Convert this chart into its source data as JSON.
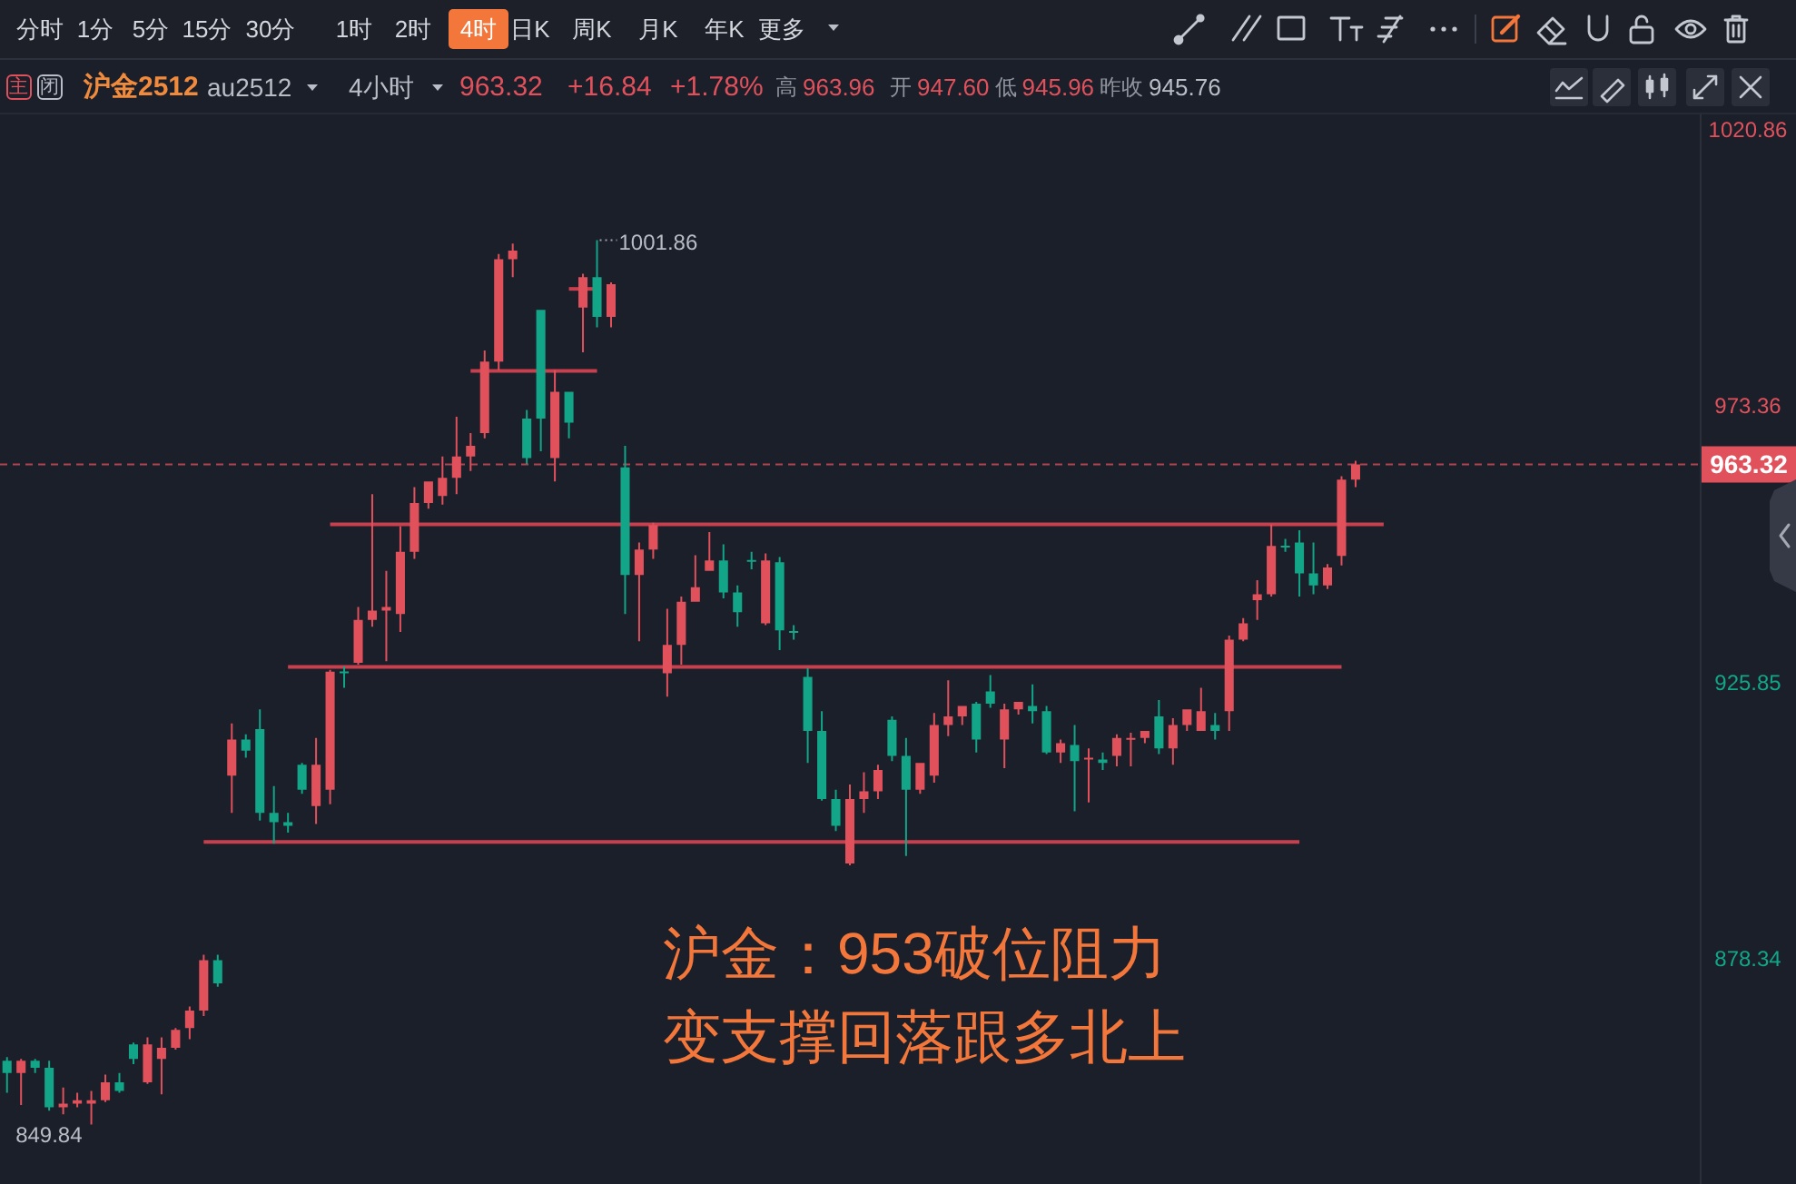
{
  "chart_data": {
    "type": "candlestick",
    "title": "沪金2512",
    "subtitle": "au2512",
    "categories": [
      null,
      null,
      null,
      null,
      null,
      null,
      null,
      null,
      null,
      null,
      null,
      null,
      null,
      null,
      null,
      null,
      null,
      null,
      null,
      null,
      null,
      null,
      null,
      null,
      null,
      null,
      null,
      null,
      null,
      null,
      null,
      null,
      null,
      null,
      null,
      null,
      null,
      null,
      null,
      null,
      null,
      null,
      null,
      null,
      null,
      null,
      null,
      null,
      null,
      null,
      null,
      null,
      null,
      null,
      null,
      null,
      null,
      null,
      null,
      null,
      null,
      null,
      null,
      null,
      null,
      null,
      null,
      null,
      null,
      null,
      null,
      null,
      null,
      null,
      null,
      null,
      null,
      null,
      null,
      null,
      null,
      null,
      null,
      null,
      null,
      null,
      null,
      null,
      null,
      null,
      null,
      null,
      null,
      null,
      null,
      null,
      null,
      null,
      null,
      null,
      null,
      null,
      null,
      null,
      null,
      null,
      null,
      null,
      null,
      null,
      null,
      null,
      null,
      null,
      null,
      null,
      null,
      null,
      null,
      null,
      null
    ],
    "ohlc": [
      [
        860.8,
        861.4,
        855.3,
        858.7
      ],
      [
        858.7,
        861.1,
        853.2,
        860.8
      ],
      [
        860.8,
        861.1,
        858.7,
        859.6
      ],
      [
        859.6,
        860.8,
        852.2,
        852.8
      ],
      [
        852.8,
        856.2,
        851.6,
        853.4
      ],
      [
        853.4,
        855.3,
        852.8,
        854.0
      ],
      [
        853.4,
        855.6,
        849.84,
        854.0
      ],
      [
        854.0,
        858.4,
        853.7,
        857.1
      ],
      [
        857.1,
        858.7,
        855.3,
        855.6
      ],
      [
        863.6,
        863.9,
        860.2,
        861.1
      ],
      [
        857.1,
        864.8,
        856.8,
        863.6
      ],
      [
        861.1,
        864.8,
        855.0,
        863.0
      ],
      [
        863.0,
        866.4,
        862.7,
        866.1
      ],
      [
        866.4,
        870.1,
        864.5,
        869.4
      ],
      [
        869.4,
        879.0,
        868.5,
        878.1
      ],
      [
        878.1,
        879.0,
        873.5,
        874.1
      ],
      [
        909.8,
        918.8,
        903.4,
        916.0
      ],
      [
        916.0,
        916.9,
        912.9,
        914.1
      ],
      [
        917.8,
        921.2,
        902.1,
        903.4
      ],
      [
        903.4,
        908.0,
        898.1,
        901.8
      ],
      [
        901.8,
        903.4,
        900.0,
        901.2
      ],
      [
        911.7,
        912.0,
        906.7,
        907.4
      ],
      [
        904.6,
        916.3,
        901.5,
        911.7
      ],
      [
        907.4,
        928.0,
        904.9,
        927.7
      ],
      [
        927.7,
        928.6,
        924.9,
        927.4
      ],
      [
        929.2,
        938.8,
        928.9,
        936.6
      ],
      [
        936.6,
        958.2,
        935.4,
        938.2
      ],
      [
        938.2,
        945.0,
        929.5,
        938.8
      ],
      [
        937.6,
        952.7,
        934.5,
        948.3
      ],
      [
        948.3,
        959.4,
        947.1,
        956.7
      ],
      [
        956.7,
        960.4,
        955.7,
        960.4
      ],
      [
        957.9,
        964.7,
        956.4,
        961.0
      ],
      [
        961.0,
        971.5,
        958.2,
        964.7
      ],
      [
        964.7,
        968.7,
        962.2,
        966.5
      ],
      [
        968.7,
        982.9,
        967.8,
        981.0
      ],
      [
        981.0,
        999.5,
        979.5,
        998.6
      ],
      [
        998.6,
        1001.3,
        995.5,
        1000.1
      ],
      [
        971.2,
        972.7,
        963.4,
        964.4
      ],
      [
        989.9,
        989.9,
        965.6,
        971.2
      ],
      [
        964.4,
        979.5,
        960.4,
        975.8
      ],
      [
        975.8,
        975.8,
        967.8,
        970.5
      ],
      [
        990.3,
        996.1,
        982.6,
        995.5
      ],
      [
        995.5,
        1001.86,
        986.9,
        988.7
      ],
      [
        988.7,
        994.6,
        986.9,
        994.3
      ],
      [
        962.8,
        966.5,
        937.6,
        944.3
      ],
      [
        944.3,
        949.9,
        932.9,
        948.7
      ],
      [
        948.7,
        953.3,
        947.1,
        952.9
      ],
      [
        927.4,
        938.5,
        923.4,
        932.3
      ],
      [
        932.3,
        940.6,
        928.9,
        939.7
      ],
      [
        939.7,
        947.7,
        939.7,
        942.2
      ],
      [
        945.0,
        951.7,
        945.0,
        946.8
      ],
      [
        946.8,
        949.6,
        940.3,
        941.3
      ],
      [
        941.3,
        942.5,
        935.4,
        937.9
      ],
      [
        946.9,
        948.3,
        945.3,
        946.6
      ],
      [
        936.0,
        948.0,
        935.7,
        946.8
      ],
      [
        946.5,
        947.4,
        931.4,
        934.8
      ],
      [
        934.6,
        935.7,
        933.2,
        934.4
      ],
      [
        926.8,
        928.3,
        912.0,
        917.5
      ],
      [
        917.5,
        920.9,
        905.5,
        905.8
      ],
      [
        905.8,
        907.4,
        900.3,
        901.2
      ],
      [
        894.7,
        908.3,
        894.4,
        905.8
      ],
      [
        905.8,
        910.4,
        903.4,
        907.1
      ],
      [
        907.1,
        911.7,
        905.8,
        910.8
      ],
      [
        919.4,
        920.0,
        912.3,
        913.2
      ],
      [
        913.2,
        916.3,
        896.0,
        907.4
      ],
      [
        907.4,
        912.0,
        906.7,
        912.0
      ],
      [
        909.8,
        920.6,
        908.6,
        918.5
      ],
      [
        918.5,
        926.2,
        916.6,
        920.0
      ],
      [
        920.0,
        921.8,
        918.5,
        921.8
      ],
      [
        922.2,
        922.5,
        913.8,
        916.0
      ],
      [
        924.3,
        927.1,
        921.5,
        922.2
      ],
      [
        916.0,
        922.2,
        911.1,
        921.2
      ],
      [
        921.2,
        922.5,
        920.3,
        922.5
      ],
      [
        921.8,
        925.5,
        918.8,
        920.9
      ],
      [
        920.9,
        921.8,
        913.5,
        913.8
      ],
      [
        913.8,
        916.0,
        912.0,
        915.4
      ],
      [
        915.1,
        918.5,
        903.7,
        912.3
      ],
      [
        912.6,
        914.5,
        905.2,
        912.9
      ],
      [
        912.6,
        913.8,
        910.8,
        912.0
      ],
      [
        913.2,
        916.9,
        911.4,
        916.3
      ],
      [
        916.0,
        917.2,
        911.4,
        916.3
      ],
      [
        916.3,
        917.5,
        915.4,
        917.5
      ],
      [
        920.0,
        922.8,
        913.5,
        914.5
      ],
      [
        914.5,
        919.7,
        911.7,
        918.5
      ],
      [
        918.5,
        921.2,
        917.5,
        921.2
      ],
      [
        917.5,
        924.9,
        917.5,
        920.9
      ],
      [
        918.5,
        920.6,
        916.0,
        917.5
      ],
      [
        920.9,
        933.9,
        917.5,
        933.2
      ],
      [
        933.2,
        936.9,
        932.9,
        936.0
      ],
      [
        940.0,
        943.4,
        936.6,
        941.0
      ],
      [
        941.0,
        953.0,
        940.6,
        949.3
      ],
      [
        949.3,
        950.5,
        948.3,
        949.1
      ],
      [
        949.9,
        952.0,
        940.6,
        944.6
      ],
      [
        944.6,
        949.9,
        941.0,
        942.5
      ],
      [
        942.5,
        946.2,
        941.9,
        945.6
      ],
      [
        947.6,
        961.3,
        945.96,
        960.7
      ],
      [
        960.7,
        963.96,
        959.4,
        963.32
      ],
      null,
      null,
      null,
      null,
      null,
      null,
      null,
      null,
      null,
      null,
      null,
      null,
      null,
      null,
      null,
      null,
      null,
      null,
      null,
      null,
      null,
      null,
      null,
      null
    ],
    "colors": [
      "#12a588",
      "#e0515c",
      "#12a588",
      "#12a588",
      "#e0515c",
      "#e0515c",
      "#e0515c",
      "#e0515c",
      "#12a588",
      "#12a588",
      "#e0515c",
      "#e0515c",
      "#e0515c",
      "#e0515c",
      "#e0515c",
      "#12a588",
      "#e0515c",
      "#12a588",
      "#12a588",
      "#12a588",
      "#12a588",
      "#12a588",
      "#e0515c",
      "#e0515c",
      "#12a588",
      "#e0515c",
      "#e0515c",
      "#e0515c",
      "#e0515c",
      "#e0515c",
      "#e0515c",
      "#e0515c",
      "#e0515c",
      "#e0515c",
      "#e0515c",
      "#e0515c",
      "#e0515c",
      "#12a588",
      "#12a588",
      "#e0515c",
      "#12a588",
      "#e0515c",
      "#12a588",
      "#e0515c",
      "#12a588",
      "#e0515c",
      "#e0515c",
      "#e0515c",
      "#e0515c",
      "#e0515c",
      "#e0515c",
      "#12a588",
      "#12a588",
      "#12a588",
      "#e0515c",
      "#12a588",
      "#12a588",
      "#12a588",
      "#12a588",
      "#12a588",
      "#e0515c",
      "#e0515c",
      "#e0515c",
      "#12a588",
      "#12a588",
      "#e0515c",
      "#e0515c",
      "#e0515c",
      "#e0515c",
      "#12a588",
      "#12a588",
      "#e0515c",
      "#e0515c",
      "#12a588",
      "#12a588",
      "#e0515c",
      "#12a588",
      "#e0515c",
      "#12a588",
      "#e0515c",
      "#e0515c",
      "#e0515c",
      "#12a588",
      "#e0515c",
      "#e0515c",
      "#e0515c",
      "#12a588",
      "#e0515c",
      "#e0515c",
      "#e0515c",
      "#e0515c",
      "#12a588",
      "#12a588",
      "#12a588",
      "#e0515c",
      "#e0515c",
      "#e0515c",
      null,
      null,
      null,
      null,
      null,
      null,
      null,
      null,
      null,
      null,
      null,
      null,
      null,
      null,
      null,
      null,
      null,
      null,
      null,
      null,
      null,
      null,
      null,
      null
    ],
    "series": [
      {
        "type": "line",
        "color": "#c8404e",
        "values": [
          null,
          null,
          null,
          null,
          null,
          null,
          null,
          null,
          null,
          null,
          null,
          null,
          null,
          null,
          null,
          null,
          null,
          null,
          null,
          null,
          null,
          null,
          null,
          953,
          953,
          953,
          953,
          953,
          953,
          953,
          953,
          953,
          953,
          953,
          953,
          953,
          953,
          953,
          953,
          953,
          953,
          953,
          953,
          953,
          953,
          953,
          953,
          953,
          953,
          953,
          953,
          953,
          953,
          953,
          953,
          953,
          953,
          953,
          953,
          953,
          953,
          953,
          953,
          953,
          953,
          953,
          953,
          953,
          953,
          953,
          953,
          953,
          953,
          953,
          953,
          953,
          953,
          953,
          953,
          953,
          953,
          953,
          953,
          953,
          953,
          953,
          953,
          953,
          953,
          953,
          953,
          953,
          953,
          953,
          953,
          953,
          953,
          953,
          953,
          null,
          null,
          null,
          null,
          null,
          null,
          null,
          null,
          null,
          null,
          null,
          null,
          null,
          null,
          null,
          null,
          null,
          null,
          null,
          null,
          null,
          null
        ]
      },
      {
        "type": "line",
        "color": "#c8404e",
        "values": [
          null,
          null,
          null,
          null,
          null,
          null,
          null,
          null,
          null,
          null,
          null,
          null,
          null,
          null,
          null,
          null,
          null,
          null,
          null,
          null,
          928.5,
          928.5,
          928.5,
          928.5,
          928.5,
          928.5,
          928.5,
          928.5,
          928.5,
          928.5,
          928.5,
          928.5,
          928.5,
          928.5,
          928.5,
          928.5,
          928.5,
          928.5,
          928.5,
          928.5,
          928.5,
          928.5,
          928.5,
          928.5,
          928.5,
          928.5,
          928.5,
          928.5,
          928.5,
          928.5,
          928.5,
          928.5,
          928.5,
          928.5,
          928.5,
          928.5,
          928.5,
          928.5,
          928.5,
          928.5,
          928.5,
          928.5,
          928.5,
          928.5,
          928.5,
          928.5,
          928.5,
          928.5,
          928.5,
          928.5,
          928.5,
          928.5,
          928.5,
          928.5,
          928.5,
          928.5,
          928.5,
          928.5,
          928.5,
          928.5,
          928.5,
          928.5,
          928.5,
          928.5,
          928.5,
          928.5,
          928.5,
          928.5,
          928.5,
          928.5,
          928.5,
          928.5,
          928.5,
          928.5,
          928.5,
          928.5,
          null,
          null,
          null,
          null,
          null,
          null,
          null,
          null,
          null,
          null,
          null,
          null,
          null,
          null,
          null,
          null,
          null,
          null,
          null,
          null,
          null,
          null,
          null,
          null,
          null
        ]
      },
      {
        "type": "line",
        "color": "#c8404e",
        "values": [
          null,
          null,
          null,
          null,
          null,
          null,
          null,
          null,
          null,
          null,
          null,
          null,
          null,
          null,
          898.4,
          898.4,
          898.4,
          898.4,
          898.4,
          898.4,
          898.4,
          898.4,
          898.4,
          898.4,
          898.4,
          898.4,
          898.4,
          898.4,
          898.4,
          898.4,
          898.4,
          898.4,
          898.4,
          898.4,
          898.4,
          898.4,
          898.4,
          898.4,
          898.4,
          898.4,
          898.4,
          898.4,
          898.4,
          898.4,
          898.4,
          898.4,
          898.4,
          898.4,
          898.4,
          898.4,
          898.4,
          898.4,
          898.4,
          898.4,
          898.4,
          898.4,
          898.4,
          898.4,
          898.4,
          898.4,
          898.4,
          898.4,
          898.4,
          898.4,
          898.4,
          898.4,
          898.4,
          898.4,
          898.4,
          898.4,
          898.4,
          898.4,
          898.4,
          898.4,
          898.4,
          898.4,
          898.4,
          898.4,
          898.4,
          898.4,
          898.4,
          898.4,
          898.4,
          898.4,
          898.4,
          898.4,
          898.4,
          898.4,
          898.4,
          898.4,
          898.4,
          898.4,
          898.4,
          null,
          null,
          null,
          null,
          null,
          null,
          null,
          null,
          null,
          null,
          null,
          null,
          null,
          null,
          null,
          null,
          null,
          null,
          null,
          null,
          null,
          null,
          null,
          null,
          null,
          null,
          null,
          null
        ]
      },
      {
        "type": "line",
        "color": "#c8404e",
        "values": [
          null,
          null,
          null,
          null,
          null,
          null,
          null,
          null,
          null,
          null,
          null,
          null,
          null,
          null,
          null,
          null,
          null,
          null,
          null,
          null,
          null,
          null,
          null,
          null,
          null,
          null,
          null,
          null,
          null,
          null,
          null,
          null,
          null,
          979.4,
          979.4,
          979.4,
          979.4,
          979.4,
          979.4,
          979.4,
          979.4,
          979.4,
          979.4,
          null,
          null,
          null,
          null,
          null,
          null,
          null,
          null,
          null,
          null,
          null,
          null,
          null,
          null,
          null,
          null,
          null,
          null,
          null,
          null,
          null,
          null,
          null,
          null,
          null,
          null,
          null,
          null,
          null,
          null,
          null,
          null,
          null,
          null,
          null,
          null,
          null,
          null,
          null,
          null,
          null,
          null,
          null,
          null,
          null,
          null,
          null,
          null,
          null,
          null,
          null,
          null,
          null,
          null,
          null,
          null,
          null,
          null,
          null,
          null,
          null,
          null,
          null,
          null,
          null,
          null,
          null,
          null,
          null,
          null,
          null,
          null,
          null,
          null,
          null,
          null,
          null,
          null
        ]
      },
      {
        "type": "line",
        "color": "#c8404e",
        "values": [
          null,
          null,
          null,
          null,
          null,
          null,
          null,
          null,
          null,
          null,
          null,
          null,
          null,
          null,
          null,
          null,
          null,
          null,
          null,
          null,
          null,
          null,
          null,
          null,
          null,
          null,
          null,
          null,
          null,
          null,
          null,
          null,
          null,
          null,
          null,
          null,
          null,
          null,
          null,
          null,
          993.5,
          993.5,
          993.5,
          null,
          null,
          null,
          null,
          null,
          null,
          null,
          null,
          null,
          null,
          null,
          null,
          null,
          null,
          null,
          null,
          null,
          null,
          null,
          null,
          null,
          null,
          null,
          null,
          null,
          null,
          null,
          null,
          null,
          null,
          null,
          null,
          null,
          null,
          null,
          null,
          null,
          null,
          null,
          null,
          null,
          null,
          null,
          null,
          null,
          null,
          null,
          null,
          null,
          null,
          null,
          null,
          null,
          null,
          null,
          null,
          null,
          null,
          null,
          null,
          null,
          null,
          null,
          null,
          null,
          null,
          null,
          null,
          null,
          null,
          null,
          null,
          null,
          null,
          null,
          null,
          null,
          null
        ]
      }
    ],
    "ylim": [
      839.6,
      1023.5
    ],
    "yticks": [
      878.34,
      925.85,
      973.36,
      1020.86
    ],
    "tick_labels": "y",
    "ref_lines": [
      {
        "axis": "y",
        "value": 963.32,
        "label": "963.32",
        "color": "#e0515c",
        "line_style": "dashed"
      }
    ],
    "annotations": [
      "分时",
      "1分",
      "5分",
      "15分",
      "30分",
      "1时",
      "2时",
      "4时",
      "日K",
      "周K",
      "月K",
      "年K",
      "更多",
      "主",
      "闭",
      "4小时",
      "963.32",
      "+16.84",
      "+1.78%",
      "高",
      "963.96",
      "开",
      "947.60",
      "低",
      "945.96",
      "昨收",
      "945.76",
      "沪金：953破位阻力",
      "变支撑回落跟多北上",
      "1001.86",
      "849.84"
    ]
  }
}
